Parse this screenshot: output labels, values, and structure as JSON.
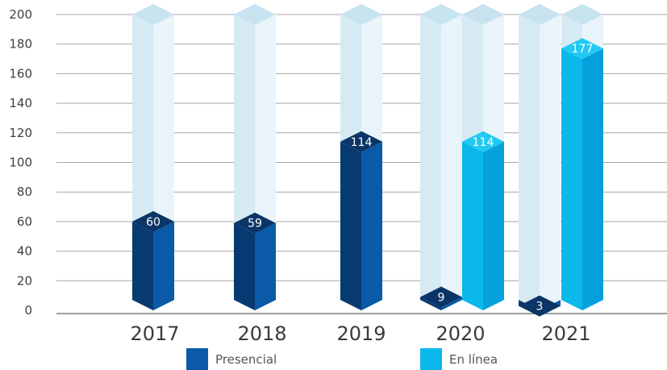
{
  "chart_data": {
    "type": "bar",
    "categories": [
      "2017",
      "2018",
      "2019",
      "2020",
      "2021"
    ],
    "series": [
      {
        "name": "Presencial",
        "values": [
          60,
          59,
          114,
          9,
          3
        ]
      },
      {
        "name": "En línea",
        "values": [
          null,
          null,
          null,
          114,
          177
        ]
      }
    ],
    "value_labels": [
      "60",
      "59",
      "114",
      "9",
      "114",
      "3",
      "177"
    ],
    "ylim": [
      0,
      200
    ],
    "yticks": [
      "0",
      "20",
      "40",
      "60",
      "80",
      "100",
      "120",
      "140",
      "160",
      "180",
      "200"
    ],
    "grid": true,
    "legend": "bottom",
    "colors": {
      "presencial_front": "#0a5aa8",
      "presencial_side": "#083a72",
      "presencial_top": "#0a3566",
      "enlinea_front": "#0ab8ea",
      "enlinea_side": "#06a1dc",
      "enlinea_top": "#22c9f2",
      "ghost_front": "#d6eaf4",
      "ghost_side": "#e8f4f9",
      "ghost_top": "#c7e3f0",
      "grid": "#a6a6a6",
      "axis": "#7f7f7f"
    }
  }
}
